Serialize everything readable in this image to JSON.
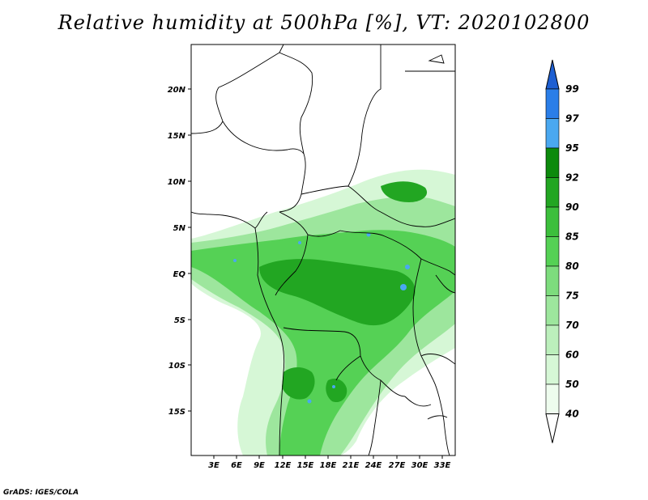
{
  "title": "Relative humidity at 500hPa [%], VT: 2020102800",
  "credit": "GrADS: IGES/COLA",
  "map": {
    "lat_ticks": [
      "20N",
      "15N",
      "10N",
      "5N",
      "EQ",
      "5S",
      "10S",
      "15S"
    ],
    "lon_ticks": [
      "3E",
      "6E",
      "9E",
      "12E",
      "15E",
      "18E",
      "21E",
      "24E",
      "27E",
      "30E",
      "33E"
    ]
  },
  "colorbar": {
    "labels": [
      "99",
      "97",
      "95",
      "92",
      "90",
      "85",
      "80",
      "75",
      "70",
      "60",
      "50",
      "40"
    ],
    "colors": [
      "#1e5fd2",
      "#2a7ee8",
      "#4aa8f0",
      "#0c8a0c",
      "#22a622",
      "#3cbf3c",
      "#55d155",
      "#7ddc7d",
      "#9de69d",
      "#bcefbc",
      "#d6f7d6",
      "#eefcee"
    ],
    "extends": "both"
  },
  "colors": {
    "land_border": "#000000",
    "background": "#ffffff"
  }
}
